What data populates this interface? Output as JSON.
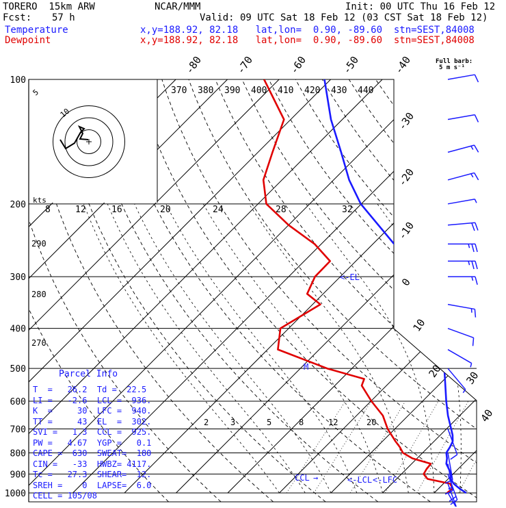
{
  "header": {
    "model": "TORERO  15km ARW",
    "org": "NCAR/MMM",
    "init": "Init: 00 UTC Thu 16 Feb 12",
    "fcst_label": "Fcst:",
    "fcst_value": "57 h",
    "valid": "Valid: 09 UTC Sat 18 Feb 12 (03 CST Sat 18 Feb 12)",
    "temp_label": "Temperature",
    "dew_label": "Dewpoint",
    "temp_loc": "x,y=188.92, 82.18   lat,lon=  0.90, -89.60  stn=SEST,84008",
    "dew_loc": "x,y=188.92, 82.18   lat,lon=  0.90, -89.60  stn=SEST,84008",
    "full_barb_1": "Full barb:",
    "full_barb_2": "5 m s⁻¹"
  },
  "colors": {
    "temperature": "#1a1aff",
    "dewpoint": "#e00000",
    "grid": "#000000",
    "accent_labels": "#1a1aff"
  },
  "chart_data": {
    "type": "line",
    "title": "",
    "y_axis": {
      "scale": "log",
      "label": "",
      "ticks": [
        100,
        200,
        300,
        400,
        500,
        600,
        700,
        800,
        900,
        1000
      ]
    },
    "isotherm_labels": [
      "-80",
      "-70",
      "-60",
      "-50",
      "-40",
      "-30",
      "-20",
      "-10",
      "0",
      "10",
      "20",
      "30",
      "40"
    ],
    "theta_labels": [
      "370",
      "380",
      "390",
      "400",
      "410",
      "420",
      "430",
      "440"
    ],
    "mixing_ratio_labels": [
      "2",
      "3",
      "5",
      "8",
      "12",
      "20"
    ],
    "hodograph_labels": [
      "kts",
      "8",
      "12",
      "16",
      "20",
      "24",
      "28",
      "32"
    ],
    "theta_e_labels": [
      "290",
      "280",
      "270"
    ],
    "hodograph_ring_labels": [
      "5",
      "10"
    ],
    "series": [
      {
        "name": "Temperature",
        "points": [
          [
            1000,
            26.2
          ],
          [
            975,
            24.0
          ],
          [
            950,
            22.0
          ],
          [
            925,
            20.5
          ],
          [
            900,
            19.6
          ],
          [
            875,
            18.2
          ],
          [
            850,
            16.7
          ],
          [
            825,
            15.8
          ],
          [
            800,
            14.6
          ],
          [
            775,
            14.2
          ],
          [
            750,
            13.6
          ],
          [
            725,
            12.4
          ],
          [
            700,
            10.9
          ],
          [
            650,
            7.7
          ],
          [
            600,
            4.6
          ],
          [
            550,
            1.4
          ],
          [
            500,
            -2.1
          ],
          [
            450,
            -6.1
          ],
          [
            400,
            -11.1
          ],
          [
            350,
            -17.1
          ],
          [
            300,
            -25.0
          ],
          [
            250,
            -35.9
          ],
          [
            200,
            -50.1
          ],
          [
            175,
            -57.0
          ],
          [
            150,
            -63.9
          ],
          [
            125,
            -72.2
          ],
          [
            100,
            -81.2
          ]
        ]
      },
      {
        "name": "Dewpoint",
        "points": [
          [
            1000,
            22.5
          ],
          [
            975,
            22.7
          ],
          [
            950,
            21.3
          ],
          [
            925,
            16.0
          ],
          [
            900,
            14.3
          ],
          [
            875,
            13.9
          ],
          [
            850,
            13.7
          ],
          [
            825,
            9.1
          ],
          [
            800,
            6.2
          ],
          [
            775,
            4.5
          ],
          [
            750,
            2.5
          ],
          [
            700,
            -1.4
          ],
          [
            650,
            -4.9
          ],
          [
            600,
            -9.9
          ],
          [
            550,
            -14.8
          ],
          [
            530,
            -15.6
          ],
          [
            500,
            -24.8
          ],
          [
            450,
            -38.0
          ],
          [
            400,
            -41.6
          ],
          [
            350,
            -38.5
          ],
          [
            330,
            -43.1
          ],
          [
            300,
            -44.9
          ],
          [
            275,
            -45.0
          ],
          [
            250,
            -51.3
          ],
          [
            225,
            -60.0
          ],
          [
            200,
            -68.4
          ],
          [
            175,
            -73.6
          ],
          [
            150,
            -77.2
          ],
          [
            125,
            -81.3
          ],
          [
            100,
            -92.9
          ]
        ]
      }
    ],
    "level_labels": {
      "el": "<-EL",
      "ccl": "CCL",
      "lcl": "<-LCL",
      "lfc": "<-LFC",
      "m": "M",
      "lcl_tick": "→"
    },
    "winds": {
      "units": "kts",
      "barbs": [
        {
          "p": 100,
          "dir": 80,
          "spd": 10
        },
        {
          "p": 125,
          "dir": 80,
          "spd": 10
        },
        {
          "p": 150,
          "dir": 75,
          "spd": 15
        },
        {
          "p": 175,
          "dir": 75,
          "spd": 15
        },
        {
          "p": 200,
          "dir": 80,
          "spd": 5
        },
        {
          "p": 225,
          "dir": 85,
          "spd": 20
        },
        {
          "p": 250,
          "dir": 90,
          "spd": 25
        },
        {
          "p": 275,
          "dir": 90,
          "spd": 25
        },
        {
          "p": 300,
          "dir": 90,
          "spd": 15
        },
        {
          "p": 350,
          "dir": 100,
          "spd": 15
        },
        {
          "p": 400,
          "dir": 110,
          "spd": 10
        },
        {
          "p": 450,
          "dir": 120,
          "spd": 5
        },
        {
          "p": 500,
          "dir": 140,
          "spd": 5
        },
        {
          "p": 700,
          "dir": 160,
          "spd": 10
        },
        {
          "p": 800,
          "dir": 170,
          "spd": 15
        },
        {
          "p": 850,
          "dir": 170,
          "spd": 15
        },
        {
          "p": 900,
          "dir": 160,
          "spd": 20
        },
        {
          "p": 950,
          "dir": 160,
          "spd": 10
        },
        {
          "p": 1000,
          "dir": 150,
          "spd": 10
        }
      ]
    }
  },
  "parcel": {
    "title": "Parcel Info",
    "rows": [
      "T  =   26.2  Td =  22.5",
      "LI =   -2.6  LCL =  936.",
      "K  =     30  LFC =  940.",
      "TT =     43  EL  =  302.",
      "SVI =   1.3  CCL =  925.",
      "PW =   4.67  YGP =   0.1",
      "CAPE =  630  SWEAT=  180",
      "CIN =   -33  HWBZ= 4117.",
      "Tc =   27.3  SHEAR=  12.",
      "SREH =    0  LAPSE=  6.0",
      "CELL = 105/08"
    ]
  }
}
